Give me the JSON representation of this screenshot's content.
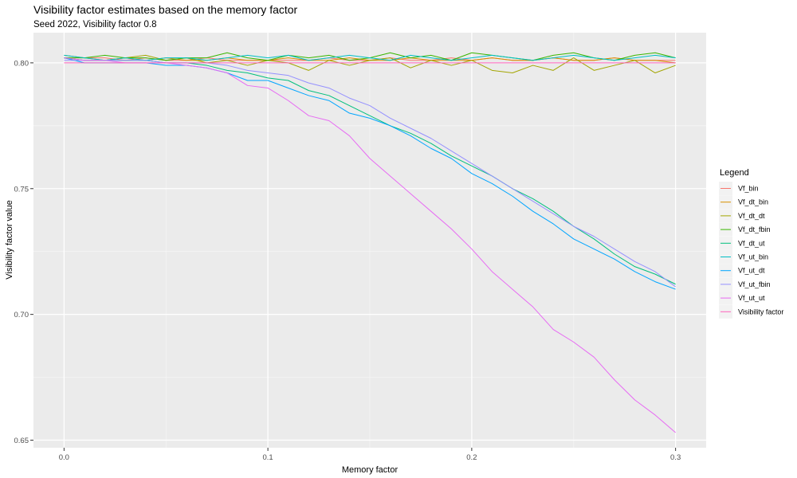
{
  "chart_data": {
    "type": "line",
    "title": "Visibility factor estimates based on the memory factor",
    "subtitle": "Seed 2022, Visibility factor 0.8",
    "xlabel": "Memory factor",
    "ylabel": "Visibility factor value",
    "xlim": [
      -0.015,
      0.315
    ],
    "ylim": [
      0.647,
      0.812
    ],
    "x_ticks": [
      0.0,
      0.1,
      0.2,
      0.3
    ],
    "x_tick_labels": [
      "0.0",
      "0.1",
      "0.2",
      "0.3"
    ],
    "y_ticks": [
      0.65,
      0.7,
      0.75,
      0.8
    ],
    "y_tick_labels": [
      "0.65",
      "0.70",
      "0.75",
      "0.80"
    ],
    "grid": true,
    "legend_title": "Legend",
    "legend_position": "right",
    "x": [
      0.0,
      0.01,
      0.02,
      0.03,
      0.04,
      0.05,
      0.06,
      0.07,
      0.08,
      0.09,
      0.1,
      0.11,
      0.12,
      0.13,
      0.14,
      0.15,
      0.16,
      0.17,
      0.18,
      0.19,
      0.2,
      0.21,
      0.22,
      0.23,
      0.24,
      0.25,
      0.26,
      0.27,
      0.28,
      0.29,
      0.3
    ],
    "series": [
      {
        "name": "Vf_bin",
        "color": "#F8766D",
        "values": [
          0.802,
          0.802,
          0.802,
          0.801,
          0.802,
          0.801,
          0.801,
          0.802,
          0.801,
          0.801,
          0.801,
          0.801,
          0.801,
          0.802,
          0.801,
          0.801,
          0.802,
          0.801,
          0.801,
          0.802,
          0.801,
          0.802,
          0.801,
          0.801,
          0.802,
          0.801,
          0.801,
          0.802,
          0.801,
          0.801,
          0.801
        ]
      },
      {
        "name": "Vf_dt_bin",
        "color": "#D89000",
        "values": [
          0.802,
          0.801,
          0.801,
          0.802,
          0.801,
          0.802,
          0.801,
          0.801,
          0.802,
          0.801,
          0.801,
          0.802,
          0.801,
          0.801,
          0.802,
          0.801,
          0.801,
          0.802,
          0.801,
          0.801,
          0.801,
          0.802,
          0.801,
          0.801,
          0.802,
          0.801,
          0.801,
          0.802,
          0.801,
          0.801,
          0.8
        ]
      },
      {
        "name": "Vf_dt_dt",
        "color": "#A3A500",
        "values": [
          0.803,
          0.802,
          0.801,
          0.802,
          0.803,
          0.801,
          0.802,
          0.8,
          0.801,
          0.799,
          0.801,
          0.8,
          0.797,
          0.801,
          0.799,
          0.801,
          0.802,
          0.798,
          0.801,
          0.799,
          0.801,
          0.797,
          0.796,
          0.799,
          0.797,
          0.802,
          0.797,
          0.799,
          0.801,
          0.796,
          0.799
        ]
      },
      {
        "name": "Vf_dt_fbin",
        "color": "#39B600",
        "values": [
          0.802,
          0.802,
          0.803,
          0.802,
          0.802,
          0.801,
          0.802,
          0.802,
          0.804,
          0.802,
          0.801,
          0.803,
          0.802,
          0.803,
          0.801,
          0.802,
          0.804,
          0.802,
          0.803,
          0.801,
          0.804,
          0.803,
          0.802,
          0.801,
          0.803,
          0.804,
          0.802,
          0.801,
          0.803,
          0.804,
          0.802
        ]
      },
      {
        "name": "Vf_dt_ut",
        "color": "#00BF7D",
        "values": [
          0.802,
          0.801,
          0.801,
          0.801,
          0.801,
          0.8,
          0.8,
          0.799,
          0.797,
          0.796,
          0.794,
          0.793,
          0.789,
          0.787,
          0.783,
          0.779,
          0.775,
          0.772,
          0.768,
          0.763,
          0.759,
          0.755,
          0.75,
          0.746,
          0.741,
          0.735,
          0.73,
          0.724,
          0.719,
          0.716,
          0.712
        ]
      },
      {
        "name": "Vf_ut_bin",
        "color": "#00BFC4",
        "values": [
          0.803,
          0.802,
          0.801,
          0.802,
          0.801,
          0.802,
          0.802,
          0.801,
          0.802,
          0.803,
          0.802,
          0.803,
          0.801,
          0.802,
          0.803,
          0.802,
          0.801,
          0.803,
          0.802,
          0.801,
          0.802,
          0.803,
          0.802,
          0.801,
          0.802,
          0.803,
          0.802,
          0.801,
          0.802,
          0.803,
          0.802
        ]
      },
      {
        "name": "Vf_ut_dt",
        "color": "#00A5FF",
        "values": [
          0.802,
          0.8,
          0.8,
          0.8,
          0.8,
          0.799,
          0.799,
          0.798,
          0.796,
          0.793,
          0.793,
          0.79,
          0.787,
          0.785,
          0.78,
          0.778,
          0.775,
          0.771,
          0.766,
          0.762,
          0.756,
          0.752,
          0.747,
          0.741,
          0.736,
          0.73,
          0.726,
          0.722,
          0.717,
          0.713,
          0.71
        ]
      },
      {
        "name": "Vf_ut_fbin",
        "color": "#9590FF",
        "values": [
          0.801,
          0.801,
          0.801,
          0.801,
          0.801,
          0.8,
          0.8,
          0.8,
          0.799,
          0.797,
          0.796,
          0.795,
          0.792,
          0.79,
          0.786,
          0.783,
          0.778,
          0.774,
          0.77,
          0.765,
          0.76,
          0.755,
          0.75,
          0.745,
          0.74,
          0.735,
          0.731,
          0.726,
          0.721,
          0.717,
          0.711
        ]
      },
      {
        "name": "Vf_ut_ut",
        "color": "#E76BF3",
        "values": [
          0.802,
          0.801,
          0.801,
          0.8,
          0.8,
          0.8,
          0.799,
          0.798,
          0.796,
          0.791,
          0.79,
          0.785,
          0.779,
          0.777,
          0.771,
          0.762,
          0.755,
          0.748,
          0.741,
          0.734,
          0.726,
          0.717,
          0.71,
          0.703,
          0.694,
          0.689,
          0.683,
          0.674,
          0.666,
          0.66,
          0.653
        ]
      },
      {
        "name": "Visibility factor",
        "color": "#FF62BC",
        "values": [
          0.8,
          0.8,
          0.8,
          0.8,
          0.8,
          0.8,
          0.8,
          0.8,
          0.8,
          0.8,
          0.8,
          0.8,
          0.8,
          0.8,
          0.8,
          0.8,
          0.8,
          0.8,
          0.8,
          0.8,
          0.8,
          0.8,
          0.8,
          0.8,
          0.8,
          0.8,
          0.8,
          0.8,
          0.8,
          0.8,
          0.8
        ]
      }
    ]
  }
}
